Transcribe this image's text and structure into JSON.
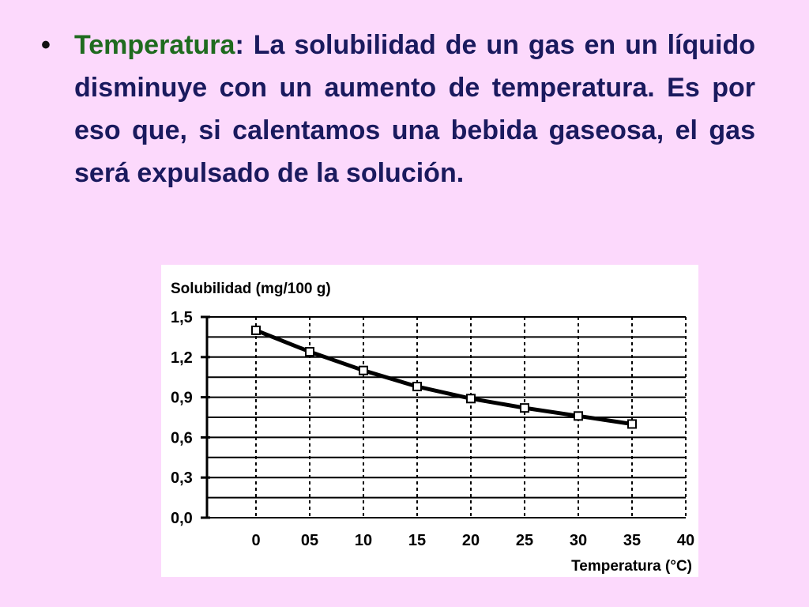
{
  "slide": {
    "bullet": "•",
    "term": "Temperatura",
    "separator": ":",
    "body": " La solubilidad de un gas en un líquido disminuye con un aumento de temperatura. Es por eso que, si calentamos una bebida gaseosa, el gas será expulsado de la solución."
  },
  "colors": {
    "background": "#fcd9fc",
    "term": "#1f6b1f",
    "body_text": "#1a1a5e",
    "chart_bg": "#ffffff"
  },
  "chart_data": {
    "type": "line",
    "title": "",
    "ylabel": "Solubilidad (mg/100 g)",
    "xlabel": "Temperatura (°C)",
    "x_ticks": [
      0,
      5,
      10,
      15,
      20,
      25,
      30,
      35,
      40
    ],
    "x_tick_labels": [
      "0",
      "05",
      "10",
      "15",
      "20",
      "25",
      "30",
      "35",
      "40"
    ],
    "y_ticks": [
      0.0,
      0.3,
      0.6,
      0.9,
      1.2,
      1.5
    ],
    "y_tick_labels": [
      "0,0",
      "0,3",
      "0,6",
      "0,9",
      "1,2",
      "1,5"
    ],
    "xlim": [
      0,
      40
    ],
    "ylim": [
      0,
      1.5
    ],
    "grid": true,
    "series": [
      {
        "x": [
          0,
          5,
          10,
          15,
          20,
          25,
          30,
          35
        ],
        "values": [
          1.4,
          1.24,
          1.1,
          0.98,
          0.89,
          0.82,
          0.76,
          0.7
        ]
      }
    ]
  }
}
